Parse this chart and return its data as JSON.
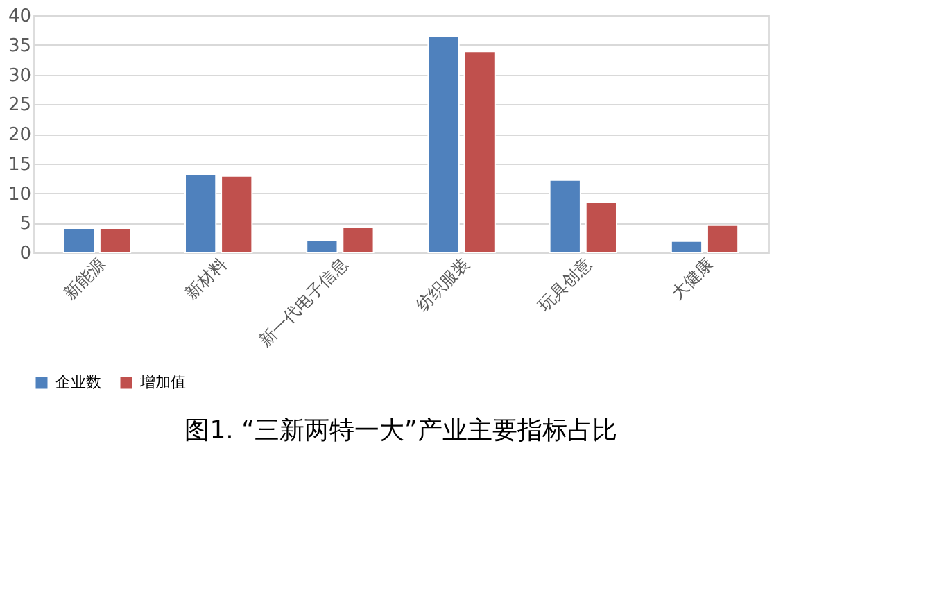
{
  "chart_data": {
    "type": "bar",
    "title": "图1.  “三新两特一大”产业主要指标占比",
    "categories": [
      "新能源",
      "新材料",
      "新一代电子信息",
      "纺织服装",
      "玩具创意",
      "大健康"
    ],
    "series": [
      {
        "name": "企业数",
        "color": "#4f81bd",
        "values": [
          4.1,
          13.2,
          2.0,
          36.4,
          12.2,
          1.9
        ]
      },
      {
        "name": "增加值",
        "color": "#c0504d",
        "values": [
          4.1,
          12.9,
          4.3,
          33.9,
          8.5,
          4.6
        ]
      }
    ],
    "ylim": [
      0,
      40
    ],
    "yticks": [
      0,
      5,
      10,
      15,
      20,
      25,
      30,
      35,
      40
    ],
    "grid": "y",
    "legend": "bottom"
  }
}
